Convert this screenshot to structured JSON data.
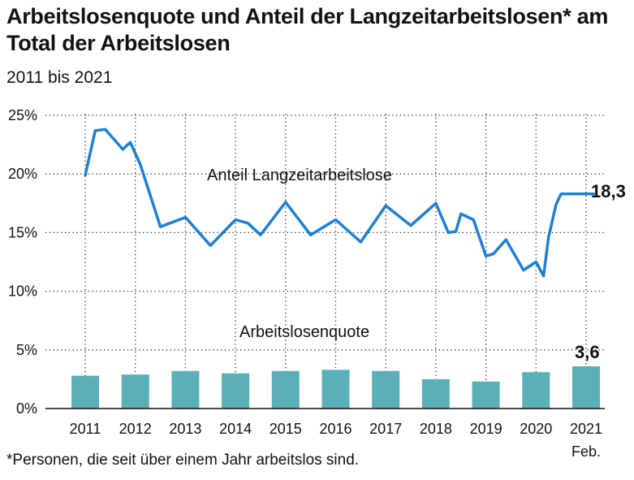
{
  "title": "Arbeitslosenquote und Anteil der Langzeitarbeitslosen* am Total der Arbeitslosen",
  "subtitle": "2011 bis 2021",
  "footnote": "*Personen, die seit über einem Jahr arbeitslos sind.",
  "chart_data": {
    "type": "bar+line",
    "yticks": [
      "25%",
      "20%",
      "15%",
      "10%",
      "5%",
      "0%"
    ],
    "ylim": [
      0,
      25
    ],
    "categories": [
      "2011",
      "2012",
      "2013",
      "2014",
      "2015",
      "2016",
      "2017",
      "2018",
      "2019",
      "2020",
      "2021"
    ],
    "category_sublabels": [
      "",
      "",
      "",
      "",
      "",
      "",
      "",
      "",
      "",
      "",
      "Feb."
    ],
    "grid": true,
    "colors": {
      "bars": "#5aafb8",
      "line": "#1f7fd0"
    },
    "series": [
      {
        "name": "Arbeitslosenquote",
        "type": "bar",
        "values": [
          2.8,
          2.9,
          3.2,
          3.0,
          3.2,
          3.3,
          3.2,
          2.5,
          2.3,
          3.1,
          3.6
        ],
        "end_label": "3,6"
      },
      {
        "name": "Anteil Langzeitarbeitslose",
        "type": "line",
        "x": [
          2011.0,
          2011.2,
          2011.4,
          2011.75,
          2011.9,
          2012.1,
          2012.5,
          2013.0,
          2013.5,
          2014.0,
          2014.25,
          2014.5,
          2015.0,
          2015.5,
          2016.0,
          2016.5,
          2017.0,
          2017.5,
          2018.0,
          2018.25,
          2018.4,
          2018.5,
          2018.75,
          2019.0,
          2019.15,
          2019.4,
          2019.75,
          2020.0,
          2020.15,
          2020.25,
          2020.4,
          2020.5,
          2020.75,
          2021.0,
          2021.15
        ],
        "values": [
          19.9,
          23.7,
          23.8,
          22.1,
          22.7,
          20.8,
          15.5,
          16.3,
          13.9,
          16.1,
          15.8,
          14.8,
          17.6,
          14.8,
          16.1,
          14.2,
          17.3,
          15.6,
          17.5,
          15.0,
          15.1,
          16.6,
          16.1,
          13.0,
          13.2,
          14.4,
          11.8,
          12.5,
          11.3,
          14.6,
          17.4,
          18.3,
          18.3,
          18.3,
          18.3
        ],
        "end_label": "18,3"
      }
    ]
  }
}
